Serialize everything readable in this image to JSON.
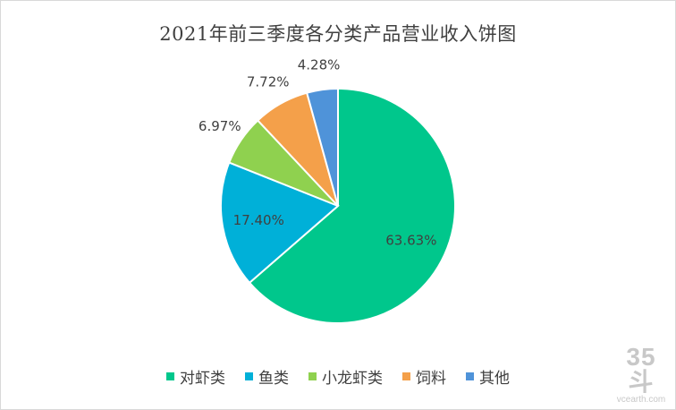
{
  "chart_data": {
    "type": "pie",
    "title": "2021年前三季度各分类产品营业收入饼图",
    "categories": [
      "对虾类",
      "鱼类",
      "小龙虾类",
      "饲料",
      "其他"
    ],
    "values": [
      63.63,
      17.4,
      6.97,
      7.72,
      4.28
    ],
    "labels": [
      "63.63%",
      "17.40%",
      "6.97%",
      "7.72%",
      "4.28%"
    ],
    "colors": [
      "#00c78c",
      "#00b0d8",
      "#8fd14f",
      "#f4a04a",
      "#4f93d9"
    ],
    "legend_position": "bottom"
  },
  "watermark": {
    "logo": "35斗",
    "site": "vcearth.com"
  }
}
